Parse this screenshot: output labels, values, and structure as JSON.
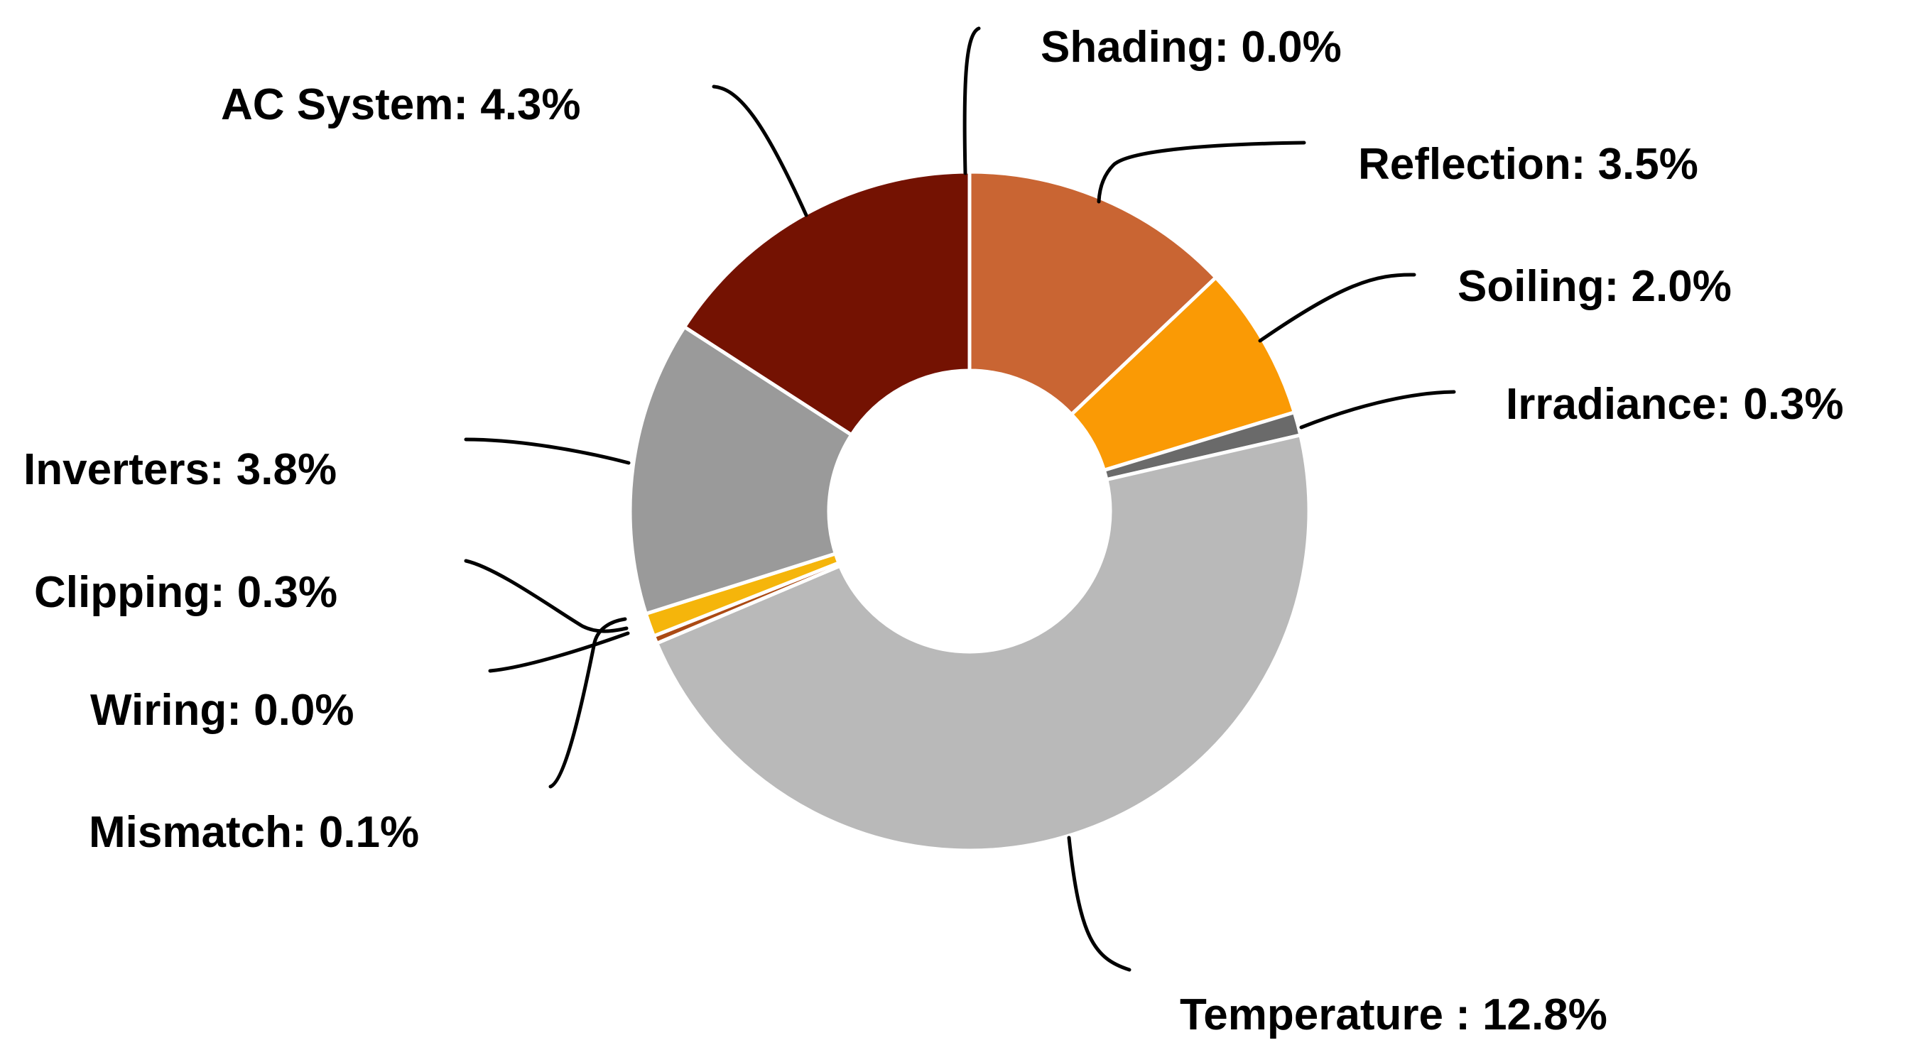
{
  "chart_data": {
    "type": "pie",
    "variant": "donut",
    "start_angle_deg": 0,
    "direction": "clockwise",
    "categories": [
      "Shading",
      "Reflection",
      "Soiling",
      "Irradiance",
      "Temperature",
      "Mismatch",
      "Wiring",
      "Clipping",
      "Inverters",
      "AC System"
    ],
    "values": [
      0.0,
      3.5,
      2.0,
      0.3,
      12.8,
      0.1,
      0.0,
      0.3,
      3.8,
      4.3
    ],
    "labels": [
      "Shading: 0.0%",
      "Reflection: 3.5%",
      "Soiling: 2.0%",
      "Irradiance: 0.3%",
      "Temperature : 12.8%",
      "Mismatch: 0.1%",
      "Wiring: 0.0%",
      "Clipping: 0.3%",
      "Inverters: 3.8%",
      "AC System: 4.3%"
    ],
    "colors": [
      "#d98a3a",
      "#c96533",
      "#fa9a05",
      "#6a6a6a",
      "#b9b9b9",
      "#ab4a14",
      "#c8a23a",
      "#f5b50b",
      "#9a9a9a",
      "#741202"
    ],
    "legend": "none"
  }
}
